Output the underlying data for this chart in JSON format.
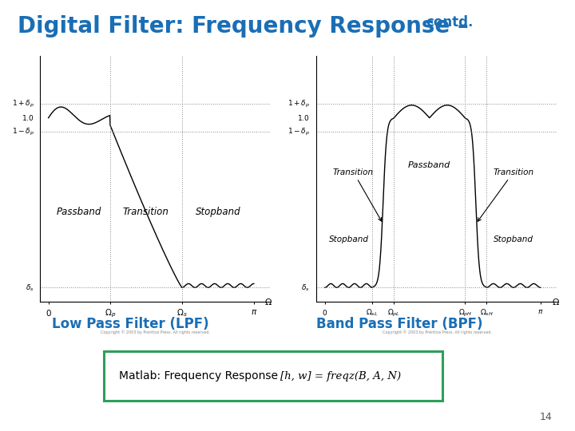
{
  "title_main": "Digital Filter: Frequency Response –",
  "title_contd": "contd.",
  "title_color": "#1a6eb5",
  "title_fontsize": 20,
  "title_contd_fontsize": 12,
  "label_lpf": "Low Pass Filter (LPF)",
  "label_bpf": "Band Pass Filter (BPF)",
  "label_color": "#1a6eb5",
  "label_fontsize": 12,
  "matlab_text": "Matlab: Frequency Response",
  "matlab_formula": "[h, w] = freqz(B, A, N)",
  "matlab_box_color": "#2ca05a",
  "page_number": "14",
  "bg_color": "#ffffff",
  "delta_p": 0.08,
  "delta_s": 0.04,
  "lpf_omega_p": 0.3,
  "lpf_omega_s": 0.65,
  "bpf_omega_sL": 0.22,
  "bpf_omega_pL": 0.32,
  "bpf_omega_pH": 0.65,
  "bpf_omega_sH": 0.75
}
